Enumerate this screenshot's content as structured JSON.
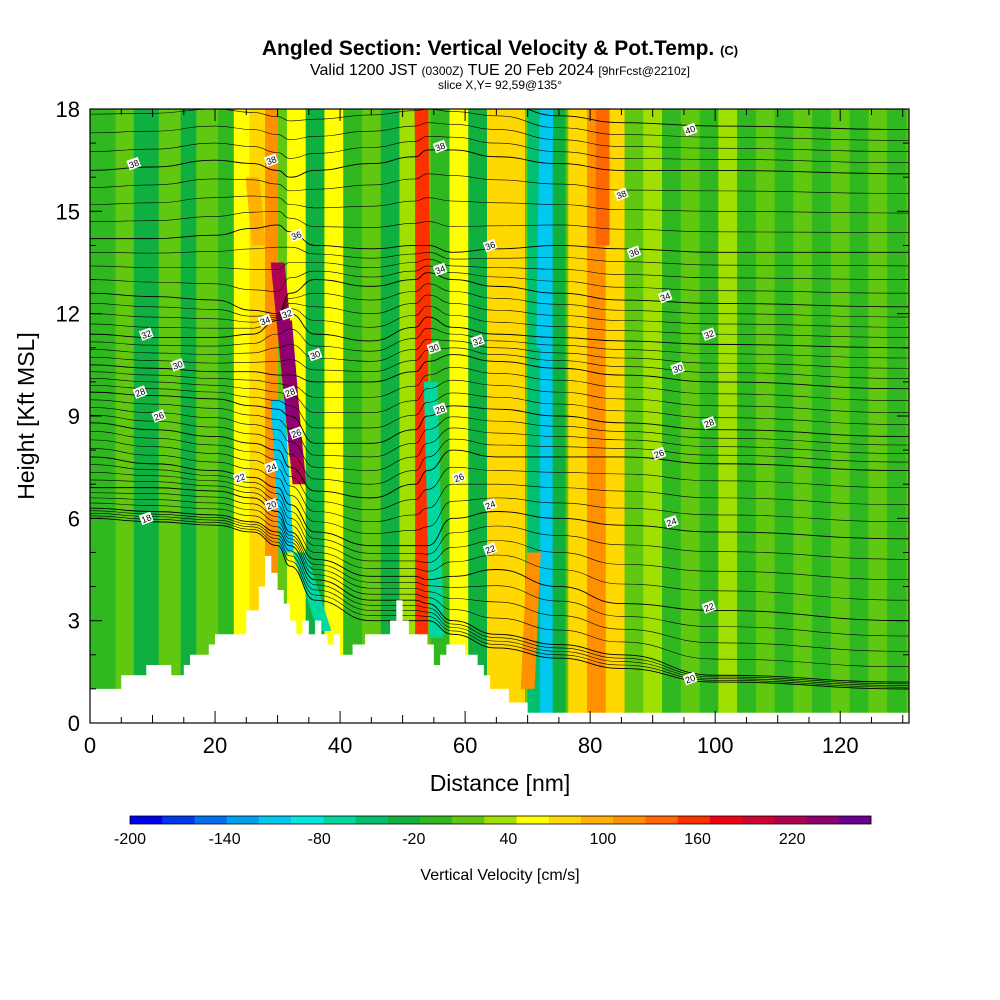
{
  "header": {
    "title": "Angled Section: Vertical Velocity & Pot.Temp.",
    "title_mark": "(C)",
    "valid_prefix": "Valid 1200 JST",
    "valid_utc": "(0300Z)",
    "valid_date": "TUE 20 Feb 2024",
    "forecast": "[9hrFcst@2210z]",
    "slice": "slice X,Y= 92,59@135°"
  },
  "chart_data": {
    "type": "heatmap",
    "xlabel": "Distance [nm]",
    "ylabel": "Height [Kft MSL]",
    "xlim": [
      0,
      131
    ],
    "ylim": [
      0,
      18
    ],
    "x_ticks": [
      0,
      20,
      40,
      60,
      80,
      100,
      120
    ],
    "y_ticks": [
      0,
      3,
      6,
      9,
      12,
      15,
      18
    ],
    "colorbar": {
      "label": "Vertical Velocity [cm/s]",
      "range": [
        -200,
        250
      ],
      "step": 20,
      "tick_labels": [
        "-200",
        "-140",
        "-80",
        "-20",
        "40",
        "100",
        "160",
        "220"
      ],
      "tick_values": [
        -200,
        -140,
        -80,
        -20,
        40,
        100,
        160,
        220
      ],
      "colors": [
        "#0000f0",
        "#0038f0",
        "#0070f0",
        "#00a0f0",
        "#00c8f0",
        "#00e8e0",
        "#00d8a0",
        "#00c070",
        "#10b040",
        "#30b820",
        "#60c810",
        "#a0e000",
        "#ffff00",
        "#ffd800",
        "#ffb000",
        "#ff9000",
        "#ff6800",
        "#ff3000",
        "#f00010",
        "#d00030",
        "#b00050",
        "#900070",
        "#6a008e"
      ]
    },
    "vertical_velocity_bands": [
      {
        "x_center": 2,
        "width": 4,
        "value": -10
      },
      {
        "x_center": 6,
        "width": 3,
        "value": 10
      },
      {
        "x_center": 9,
        "width": 4,
        "value": -30
      },
      {
        "x_center": 13,
        "width": 4,
        "value": 10
      },
      {
        "x_center": 16,
        "width": 3,
        "value": -30
      },
      {
        "x_center": 19,
        "width": 4,
        "value": 15
      },
      {
        "x_center": 22,
        "width": 3,
        "value": -20
      },
      {
        "x_center": 24.5,
        "width": 3,
        "value": 50
      },
      {
        "x_center": 27,
        "width": 3,
        "value": 70
      },
      {
        "x_center": 29,
        "width": 2,
        "value": 110
      },
      {
        "x_center": 33,
        "width": 3,
        "value": 50
      },
      {
        "x_center": 36,
        "width": 3,
        "value": -30
      },
      {
        "x_center": 39,
        "width": 3,
        "value": 40
      },
      {
        "x_center": 42,
        "width": 3,
        "value": -20
      },
      {
        "x_center": 45,
        "width": 3,
        "value": 10
      },
      {
        "x_center": 48,
        "width": 3,
        "value": -30
      },
      {
        "x_center": 51,
        "width": 3,
        "value": 20
      },
      {
        "x_center": 53,
        "width": 2,
        "value": 140
      },
      {
        "x_center": 56,
        "width": 3,
        "value": -20
      },
      {
        "x_center": 59,
        "width": 3,
        "value": 40
      },
      {
        "x_center": 62,
        "width": 3,
        "value": -30
      },
      {
        "x_center": 65,
        "width": 3,
        "value": 60
      },
      {
        "x_center": 68,
        "width": 3,
        "value": 70
      },
      {
        "x_center": 71,
        "width": 2,
        "value": -60
      },
      {
        "x_center": 73,
        "width": 2,
        "value": -110
      },
      {
        "x_center": 75,
        "width": 2,
        "value": -40
      },
      {
        "x_center": 78,
        "width": 3,
        "value": 60
      },
      {
        "x_center": 81,
        "width": 3,
        "value": 100
      },
      {
        "x_center": 84,
        "width": 3,
        "value": 70
      },
      {
        "x_center": 87,
        "width": 3,
        "value": 0
      },
      {
        "x_center": 90,
        "width": 3,
        "value": 20
      },
      {
        "x_center": 93,
        "width": 3,
        "value": -20
      },
      {
        "x_center": 96,
        "width": 3,
        "value": 15
      },
      {
        "x_center": 99,
        "width": 3,
        "value": -10
      },
      {
        "x_center": 102,
        "width": 3,
        "value": 20
      },
      {
        "x_center": 105,
        "width": 3,
        "value": -20
      },
      {
        "x_center": 108,
        "width": 3,
        "value": 15
      },
      {
        "x_center": 111,
        "width": 3,
        "value": -10
      },
      {
        "x_center": 114,
        "width": 3,
        "value": 10
      },
      {
        "x_center": 117,
        "width": 3,
        "value": -10
      },
      {
        "x_center": 120,
        "width": 3,
        "value": 10
      },
      {
        "x_center": 123,
        "width": 3,
        "value": -20
      },
      {
        "x_center": 126,
        "width": 3,
        "value": 10
      },
      {
        "x_center": 129,
        "width": 3,
        "value": -20
      }
    ],
    "updraft_cores": [
      {
        "x_top": 30,
        "x_bottom": 33.5,
        "y_top": 13.5,
        "y_bottom": 7,
        "value": 200
      },
      {
        "x_top": 31.2,
        "x_bottom": 33,
        "y_top": 11.8,
        "y_bottom": 7.8,
        "value": 230
      },
      {
        "x_top": 53,
        "x_bottom": 53.5,
        "y_top": 18,
        "y_bottom": 11,
        "value": 150
      },
      {
        "x_top": 82,
        "x_bottom": 82,
        "y_top": 18,
        "y_bottom": 14,
        "value": 130
      },
      {
        "x_top": 71,
        "x_bottom": 70,
        "y_top": 5,
        "y_bottom": 1,
        "value": 100
      },
      {
        "x_top": 26,
        "x_bottom": 27,
        "y_top": 16,
        "y_bottom": 14,
        "value": 90
      }
    ],
    "downdraft_cores": [
      {
        "x_top": 30,
        "x_bottom": 31.5,
        "y_top": 9.5,
        "y_bottom": 5,
        "value": -120
      },
      {
        "x_top": 33.5,
        "x_bottom": 37.5,
        "y_top": 5,
        "y_bottom": 2.7,
        "value": -80
      },
      {
        "x_top": 54.5,
        "x_bottom": 55.5,
        "y_top": 10,
        "y_bottom": 2.5,
        "value": -80
      },
      {
        "x_top": 73,
        "x_bottom": 72.5,
        "y_top": 18,
        "y_bottom": 11,
        "value": -110
      }
    ],
    "terrain_profile": {
      "x": [
        0,
        5,
        5,
        9,
        9,
        13,
        13,
        15,
        15,
        16,
        16,
        19,
        19,
        20,
        20,
        25,
        25,
        27,
        27,
        28,
        28,
        29,
        29,
        30,
        30,
        31,
        31,
        32,
        32,
        33,
        33,
        34,
        34,
        35,
        35,
        36,
        36,
        37,
        37,
        38,
        38,
        39,
        39,
        40,
        40,
        42,
        42,
        44,
        44,
        48,
        48,
        49,
        49,
        50,
        50,
        51,
        51,
        54,
        54,
        55,
        55,
        56,
        56,
        57,
        57,
        60,
        60,
        62,
        62,
        63,
        63,
        64,
        64,
        67,
        67,
        70,
        70,
        72,
        72,
        131
      ],
      "height": [
        1.0,
        1.0,
        1.4,
        1.4,
        1.7,
        1.7,
        1.4,
        1.4,
        1.7,
        1.7,
        2.0,
        2.0,
        2.3,
        2.3,
        2.6,
        2.6,
        3.3,
        3.3,
        4.0,
        4.0,
        4.9,
        4.9,
        4.4,
        4.4,
        3.9,
        3.9,
        3.5,
        3.5,
        3.0,
        3.0,
        2.6,
        2.6,
        3.0,
        3.0,
        2.6,
        2.6,
        3.0,
        3.0,
        2.6,
        2.6,
        2.3,
        2.3,
        2.6,
        2.6,
        2.0,
        2.0,
        2.3,
        2.3,
        2.6,
        2.6,
        3.0,
        3.0,
        3.6,
        3.6,
        3.0,
        3.0,
        2.6,
        2.6,
        2.3,
        2.3,
        1.7,
        1.7,
        2.0,
        2.0,
        2.3,
        2.3,
        2.0,
        2.0,
        1.7,
        1.7,
        1.4,
        1.4,
        1.0,
        1.0,
        0.6,
        0.6,
        0.3,
        0.3,
        0.3,
        0.3
      ]
    },
    "theta_contours": {
      "labeled_levels": [
        18,
        20,
        22,
        24,
        26,
        28,
        30,
        32,
        34,
        36,
        38,
        40
      ],
      "profile_x": [
        0,
        10,
        20,
        26,
        30,
        32,
        36,
        45,
        52,
        54,
        58,
        65,
        75,
        85,
        100,
        131
      ],
      "level_heights": [
        {
          "level": 18,
          "heights": [
            6.0,
            5.9,
            5.8,
            5.6,
            5.2,
            4.6,
            3.6,
            3.0,
            3.0,
            3.0,
            2.6,
            2.2,
            1.9,
            1.6,
            1.2,
            1.0
          ]
        },
        {
          "level": 20,
          "heights": [
            6.3,
            6.2,
            6.1,
            5.9,
            5.6,
            5.2,
            4.2,
            3.6,
            3.6,
            3.5,
            3.0,
            2.6,
            2.3,
            2.0,
            1.4,
            1.2
          ]
        },
        {
          "level": 22,
          "heights": [
            6.9,
            6.9,
            6.8,
            6.6,
            6.2,
            5.6,
            4.8,
            4.3,
            4.3,
            4.2,
            4.3,
            4.5,
            4.0,
            3.5,
            3.3,
            3.0
          ]
        },
        {
          "level": 24,
          "heights": [
            7.8,
            7.6,
            7.4,
            7.2,
            6.9,
            6.4,
            5.6,
            5.2,
            5.2,
            5.2,
            6.0,
            6.2,
            6.0,
            5.8,
            5.6,
            5.4
          ]
        },
        {
          "level": 26,
          "heights": [
            8.8,
            8.6,
            8.4,
            8.2,
            8.0,
            7.5,
            6.8,
            6.6,
            7.0,
            7.4,
            8.0,
            7.8,
            7.8,
            7.8,
            7.6,
            7.4
          ]
        },
        {
          "level": 28,
          "heights": [
            9.7,
            9.6,
            9.5,
            9.3,
            9.2,
            9.0,
            8.2,
            8.2,
            8.6,
            9.0,
            9.3,
            9.2,
            9.0,
            8.8,
            8.6,
            8.4
          ]
        },
        {
          "level": 30,
          "heights": [
            10.5,
            10.4,
            10.3,
            10.3,
            10.2,
            10.2,
            10.0,
            10.0,
            10.3,
            10.6,
            10.8,
            10.6,
            10.4,
            10.2,
            10.0,
            9.8
          ]
        },
        {
          "level": 32,
          "heights": [
            11.4,
            11.3,
            11.3,
            11.4,
            11.8,
            12.0,
            11.4,
            11.2,
            11.6,
            11.9,
            11.6,
            11.4,
            11.3,
            11.2,
            11.1,
            11.0
          ]
        },
        {
          "level": 34,
          "heights": [
            12.6,
            12.5,
            12.4,
            12.1,
            12.0,
            12.6,
            13.0,
            12.8,
            13.0,
            13.2,
            13.0,
            12.8,
            12.6,
            12.4,
            12.3,
            12.2
          ]
        },
        {
          "level": 36,
          "heights": [
            14.2,
            14.2,
            14.3,
            14.5,
            14.6,
            14.4,
            14.0,
            13.9,
            14.0,
            14.0,
            13.8,
            13.9,
            14.0,
            13.9,
            13.8,
            13.8
          ]
        },
        {
          "level": 38,
          "heights": [
            16.2,
            16.3,
            16.5,
            16.4,
            16.2,
            16.0,
            16.2,
            16.4,
            16.6,
            16.8,
            16.8,
            16.6,
            16.4,
            16.2,
            16.2,
            16.1
          ]
        },
        {
          "level": 40,
          "heights": [
            18.4,
            18.4,
            18.5,
            18.4,
            18.3,
            18.2,
            18.2,
            18.3,
            18.4,
            18.4,
            18.3,
            18.2,
            17.8,
            17.6,
            17.5,
            17.4
          ]
        }
      ]
    },
    "contour_labels": [
      {
        "text": "38",
        "x": 7,
        "y": 16.4
      },
      {
        "text": "38",
        "x": 29,
        "y": 16.5
      },
      {
        "text": "38",
        "x": 56,
        "y": 16.9
      },
      {
        "text": "40",
        "x": 96,
        "y": 17.4
      },
      {
        "text": "38",
        "x": 85,
        "y": 15.5
      },
      {
        "text": "36",
        "x": 33,
        "y": 14.3
      },
      {
        "text": "36",
        "x": 64,
        "y": 14.0
      },
      {
        "text": "36",
        "x": 87,
        "y": 13.8
      },
      {
        "text": "34",
        "x": 56,
        "y": 13.3
      },
      {
        "text": "34",
        "x": 92,
        "y": 12.5
      },
      {
        "text": "34",
        "x": 28,
        "y": 11.8
      },
      {
        "text": "32",
        "x": 31.5,
        "y": 12.0
      },
      {
        "text": "32",
        "x": 9,
        "y": 11.4
      },
      {
        "text": "32",
        "x": 62,
        "y": 11.2
      },
      {
        "text": "32",
        "x": 99,
        "y": 11.4
      },
      {
        "text": "30",
        "x": 14,
        "y": 10.5
      },
      {
        "text": "30",
        "x": 36,
        "y": 10.8
      },
      {
        "text": "30",
        "x": 55,
        "y": 11.0
      },
      {
        "text": "30",
        "x": 94,
        "y": 10.4
      },
      {
        "text": "28",
        "x": 8,
        "y": 9.7
      },
      {
        "text": "28",
        "x": 32,
        "y": 9.7
      },
      {
        "text": "28",
        "x": 56,
        "y": 9.2
      },
      {
        "text": "28",
        "x": 99,
        "y": 8.8
      },
      {
        "text": "26",
        "x": 11,
        "y": 9.0
      },
      {
        "text": "26",
        "x": 33,
        "y": 8.5
      },
      {
        "text": "26",
        "x": 59,
        "y": 7.2
      },
      {
        "text": "26",
        "x": 91,
        "y": 7.9
      },
      {
        "text": "24",
        "x": 29,
        "y": 7.5
      },
      {
        "text": "24",
        "x": 64,
        "y": 6.4
      },
      {
        "text": "24",
        "x": 93,
        "y": 5.9
      },
      {
        "text": "22",
        "x": 24,
        "y": 7.2
      },
      {
        "text": "22",
        "x": 64,
        "y": 5.1
      },
      {
        "text": "22",
        "x": 99,
        "y": 3.4
      },
      {
        "text": "20",
        "x": 29,
        "y": 6.4
      },
      {
        "text": "20",
        "x": 96,
        "y": 1.3
      },
      {
        "text": "18",
        "x": 9,
        "y": 6.0
      }
    ]
  }
}
